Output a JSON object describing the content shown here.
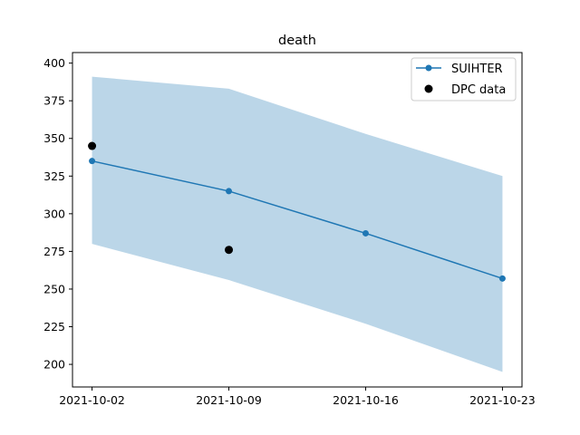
{
  "chart_data": {
    "type": "line",
    "title": "death",
    "xlabel": "",
    "ylabel": "",
    "x_type": "date",
    "x_ticks": [
      "2021-10-02",
      "2021-10-09",
      "2021-10-16",
      "2021-10-23"
    ],
    "y_ticks": [
      200,
      225,
      250,
      275,
      300,
      325,
      350,
      375,
      400
    ],
    "xlim": [
      "2021-10-01",
      "2021-10-24"
    ],
    "ylim": [
      185,
      407
    ],
    "grid": false,
    "legend_position": "top-right",
    "series": [
      {
        "name": "SUIHTER",
        "type": "line",
        "color": "#1f77b4",
        "x": [
          "2021-10-02",
          "2021-10-09",
          "2021-10-16",
          "2021-10-23"
        ],
        "y": [
          335,
          315,
          287,
          257
        ],
        "band_upper": [
          391,
          383,
          353,
          325
        ],
        "band_lower": [
          280,
          256,
          227,
          195
        ],
        "band_color": "#1f77b4"
      },
      {
        "name": "DPC data",
        "type": "scatter",
        "color": "#000000",
        "x": [
          "2021-10-02",
          "2021-10-09"
        ],
        "y": [
          345,
          276
        ]
      }
    ]
  }
}
